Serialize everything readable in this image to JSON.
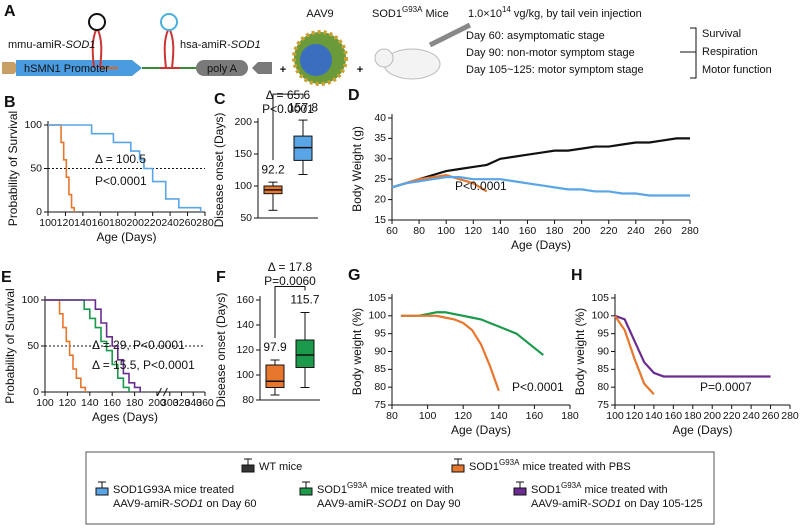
{
  "schematic": {
    "label": "A",
    "mmu": [
      "mmu-amiR-",
      "SOD1"
    ],
    "hsa": [
      "hsa-amiR-",
      "SOD1"
    ],
    "promoter": "hSMN1 Promoter",
    "polya": "poly A",
    "plus": "+",
    "vector": "AAV9",
    "mice": [
      "SOD1",
      "G93A",
      " Mice"
    ],
    "dose": [
      "1.0×10",
      "14",
      " vg/kg, by tail vein injection"
    ],
    "stages": [
      {
        "text": "Day 60: asymptomatic stage",
        "color": "#4a9be0"
      },
      {
        "text": "Day 90: non-motor symptom stage",
        "color": "#17803f"
      },
      {
        "text": "Day 105~125: motor symptom stage",
        "color": "#7a3a9c"
      }
    ],
    "outcomes": [
      "Survival",
      "Respiration",
      "Motor function"
    ]
  },
  "legend": [
    {
      "color": "#333333",
      "lines": [
        [
          {
            "text": "WT mice"
          }
        ]
      ]
    },
    {
      "color": "#e8772e",
      "lines": [
        [
          {
            "text": "SOD1"
          },
          {
            "text": "G93A",
            "style": "sup"
          },
          {
            "text": " mice treated with PBS"
          }
        ]
      ]
    },
    {
      "color": "#5aa5e6",
      "lines": [
        [
          {
            "text": "SOD1G93A mice treated"
          }
        ],
        [
          {
            "text": "AAV9-amiR-"
          },
          {
            "text": "SOD1",
            "style": "italic"
          },
          {
            "text": " on Day 60"
          }
        ]
      ]
    },
    {
      "color": "#1a9a4a",
      "lines": [
        [
          {
            "text": "SOD1"
          },
          {
            "text": "G93A",
            "style": "sup"
          },
          {
            "text": " mice treated with"
          }
        ],
        [
          {
            "text": "AAV9-amiR-"
          },
          {
            "text": "SOD1",
            "style": "italic"
          },
          {
            "text": " on Day 90"
          }
        ]
      ]
    },
    {
      "color": "#6a2c91",
      "lines": [
        [
          {
            "text": "SOD1"
          },
          {
            "text": "G93A",
            "style": "sup"
          },
          {
            "text": " mice treated with"
          }
        ],
        [
          {
            "text": "AAV9-amiR-"
          },
          {
            "text": "SOD1",
            "style": "italic"
          },
          {
            "text": " on Day 105-125"
          }
        ]
      ]
    }
  ],
  "chart_data": [
    {
      "type": "survival",
      "label": "B",
      "ylabel": "Probability of Survival",
      "xlabel": "Age (Days)",
      "xlim": [
        100,
        280
      ],
      "xticks": [
        100,
        120,
        140,
        160,
        180,
        200,
        220,
        240,
        260,
        280
      ],
      "ylim": [
        0,
        100
      ],
      "yticks": [
        0,
        50,
        100
      ],
      "reference_line": 50,
      "series": [
        {
          "color": "#e8772e",
          "x": [
            100,
            112,
            115,
            118,
            121,
            124,
            127,
            130
          ],
          "values": [
            100,
            100,
            80,
            60,
            40,
            20,
            5,
            0
          ]
        },
        {
          "color": "#5aa5e6",
          "x": [
            100,
            137,
            150,
            175,
            195,
            205,
            210,
            220,
            235,
            250,
            275
          ],
          "values": [
            100,
            100,
            90,
            80,
            70,
            60,
            50,
            35,
            15,
            5,
            0
          ]
        }
      ],
      "annotations": [
        {
          "text": "Δ = 100.5",
          "color": "#5aa5e6"
        },
        {
          "text": "P<0.0001",
          "color": "#5aa5e6"
        }
      ]
    },
    {
      "type": "box",
      "label": "C",
      "ylabel": "Disease onset (Days)",
      "ylim": [
        50,
        200
      ],
      "yticks": [
        50,
        100,
        150,
        200
      ],
      "series": [
        {
          "color": "#e8772e",
          "min": 62,
          "q1": 88,
          "median": 94,
          "q3": 100,
          "max": 106,
          "mean": 92.2
        },
        {
          "color": "#5aa5e6",
          "min": 118,
          "q1": 140,
          "median": 160,
          "q3": 178,
          "max": 203,
          "mean": 157.8
        }
      ],
      "annotations": [
        {
          "text": "Δ = 65.6",
          "color": "#5aa5e6"
        },
        {
          "text": "P<0.0001",
          "color": "#5aa5e6"
        }
      ]
    },
    {
      "type": "line",
      "label": "D",
      "ylabel": "Body Weight (g)",
      "xlabel": "Age (Days)",
      "xlim": [
        60,
        280
      ],
      "xticks": [
        60,
        80,
        100,
        120,
        140,
        160,
        180,
        200,
        220,
        240,
        260,
        280
      ],
      "ylim": [
        15,
        40
      ],
      "yticks": [
        15,
        20,
        25,
        30,
        35,
        40
      ],
      "x": [
        60,
        70,
        80,
        90,
        100,
        110,
        120,
        130,
        140,
        150,
        160,
        170,
        180,
        190,
        200,
        210,
        220,
        230,
        240,
        250,
        260,
        270,
        280
      ],
      "series": [
        {
          "color": "#111111",
          "values": [
            23,
            24,
            25,
            26,
            27,
            27.5,
            28,
            28.5,
            30,
            30.5,
            31,
            31.5,
            32,
            32,
            32.5,
            33,
            33,
            33.5,
            34,
            34,
            34.5,
            35,
            35
          ]
        },
        {
          "color": "#e8772e",
          "values": [
            23,
            24,
            25,
            25.5,
            26,
            25,
            24,
            22,
            null,
            null,
            null,
            null,
            null,
            null,
            null,
            null,
            null,
            null,
            null,
            null,
            null,
            null,
            null
          ]
        },
        {
          "color": "#5aa5e6",
          "values": [
            23,
            24,
            24.5,
            25,
            25.5,
            25.5,
            25,
            25,
            25,
            24.5,
            24,
            23.5,
            23,
            22.5,
            22.5,
            22,
            22,
            21.5,
            21.5,
            21,
            21,
            21,
            21
          ]
        }
      ],
      "annotations": [
        {
          "text": "P<0.0001",
          "color": "#5aa5e6"
        }
      ]
    },
    {
      "type": "survival",
      "label": "E",
      "ylabel": "Probability of Survival",
      "xlabel": "Ages (Days)",
      "xlim": [
        100,
        360
      ],
      "xticks": [
        100,
        120,
        140,
        160,
        180,
        200,
        300,
        320,
        340,
        360
      ],
      "axis_break": [
        200,
        300
      ],
      "ylim": [
        0,
        100
      ],
      "yticks": [
        0,
        50,
        100
      ],
      "reference_line": 50,
      "series": [
        {
          "color": "#e8772e",
          "x": [
            100,
            110,
            113,
            116,
            119,
            122,
            125,
            128,
            132,
            136
          ],
          "values": [
            100,
            100,
            85,
            70,
            55,
            40,
            25,
            15,
            5,
            0
          ]
        },
        {
          "color": "#1a9a4a",
          "x": [
            100,
            130,
            135,
            140,
            145,
            150,
            155,
            160,
            165,
            170,
            175
          ],
          "values": [
            100,
            100,
            90,
            80,
            70,
            55,
            45,
            30,
            15,
            5,
            0
          ]
        },
        {
          "color": "#6a2c91",
          "x": [
            100,
            140,
            145,
            150,
            155,
            160,
            165,
            170,
            175,
            180,
            185
          ],
          "values": [
            100,
            100,
            90,
            75,
            60,
            50,
            35,
            20,
            10,
            5,
            0
          ]
        }
      ],
      "annotations": [
        {
          "text": "Δ = 29, P<0.0001",
          "color": "#1a9a4a"
        },
        {
          "text": "Δ = 15.5, P<0.0001",
          "color": "#6a2c91"
        }
      ]
    },
    {
      "type": "box",
      "label": "F",
      "ylabel": "Disease onset (Days)",
      "ylim": [
        80,
        160
      ],
      "yticks": [
        80,
        100,
        120,
        140,
        160
      ],
      "series": [
        {
          "color": "#e8772e",
          "min": 84,
          "q1": 90,
          "median": 95,
          "q3": 108,
          "max": 112,
          "mean": 97.9
        },
        {
          "color": "#1a9a4a",
          "min": 90,
          "q1": 106,
          "median": 116,
          "q3": 128,
          "max": 150,
          "mean": 115.7
        }
      ],
      "annotations": [
        {
          "text": "Δ = 17.8",
          "color": "#1a9a4a"
        },
        {
          "text": "P=0.0060",
          "color": "#1a9a4a"
        }
      ]
    },
    {
      "type": "line",
      "label": "G",
      "ylabel": "Body weight (%)",
      "xlabel": "Age (Days)",
      "xlim": [
        80,
        180
      ],
      "xticks": [
        80,
        100,
        120,
        140,
        160,
        180
      ],
      "ylim": [
        75,
        105
      ],
      "yticks": [
        75,
        80,
        85,
        90,
        95,
        100,
        105
      ],
      "x": [
        85,
        90,
        95,
        100,
        105,
        110,
        115,
        120,
        125,
        130,
        135,
        140,
        145,
        150,
        155,
        160,
        165
      ],
      "series": [
        {
          "color": "#1a9a4a",
          "values": [
            100,
            100,
            100,
            100.5,
            101,
            101,
            100.5,
            100,
            99.5,
            99,
            98,
            97,
            96,
            95,
            93,
            91,
            89
          ]
        },
        {
          "color": "#e8772e",
          "values": [
            100,
            100,
            100,
            100,
            100,
            99.5,
            99,
            98,
            96,
            92,
            86,
            79,
            null,
            null,
            null,
            null,
            null
          ]
        }
      ],
      "annotations": [
        {
          "text": "P<0.0001",
          "color": "#1a9a4a"
        }
      ]
    },
    {
      "type": "line",
      "label": "H",
      "ylabel": "Body weight (%)",
      "xlabel": "Age (Days)",
      "xlim": [
        100,
        280
      ],
      "xticks": [
        100,
        120,
        140,
        160,
        180,
        200,
        220,
        240,
        260,
        280
      ],
      "ylim": [
        75,
        105
      ],
      "yticks": [
        75,
        80,
        85,
        90,
        95,
        100,
        105
      ],
      "x": [
        100,
        110,
        120,
        130,
        140,
        150,
        160,
        170,
        180,
        190,
        200,
        210,
        220,
        230,
        240,
        250,
        260
      ],
      "series": [
        {
          "color": "#6a2c91",
          "values": [
            100,
            99,
            93,
            87,
            84,
            83,
            83,
            83,
            83,
            83,
            83,
            83,
            83,
            83,
            83,
            83,
            83
          ]
        },
        {
          "color": "#e8772e",
          "values": [
            100,
            96,
            88,
            81,
            78,
            null,
            null,
            null,
            null,
            null,
            null,
            null,
            null,
            null,
            null,
            null,
            null
          ]
        }
      ],
      "annotations": [
        {
          "text": "P=0.0007",
          "color": "#6a2c91"
        }
      ]
    }
  ]
}
